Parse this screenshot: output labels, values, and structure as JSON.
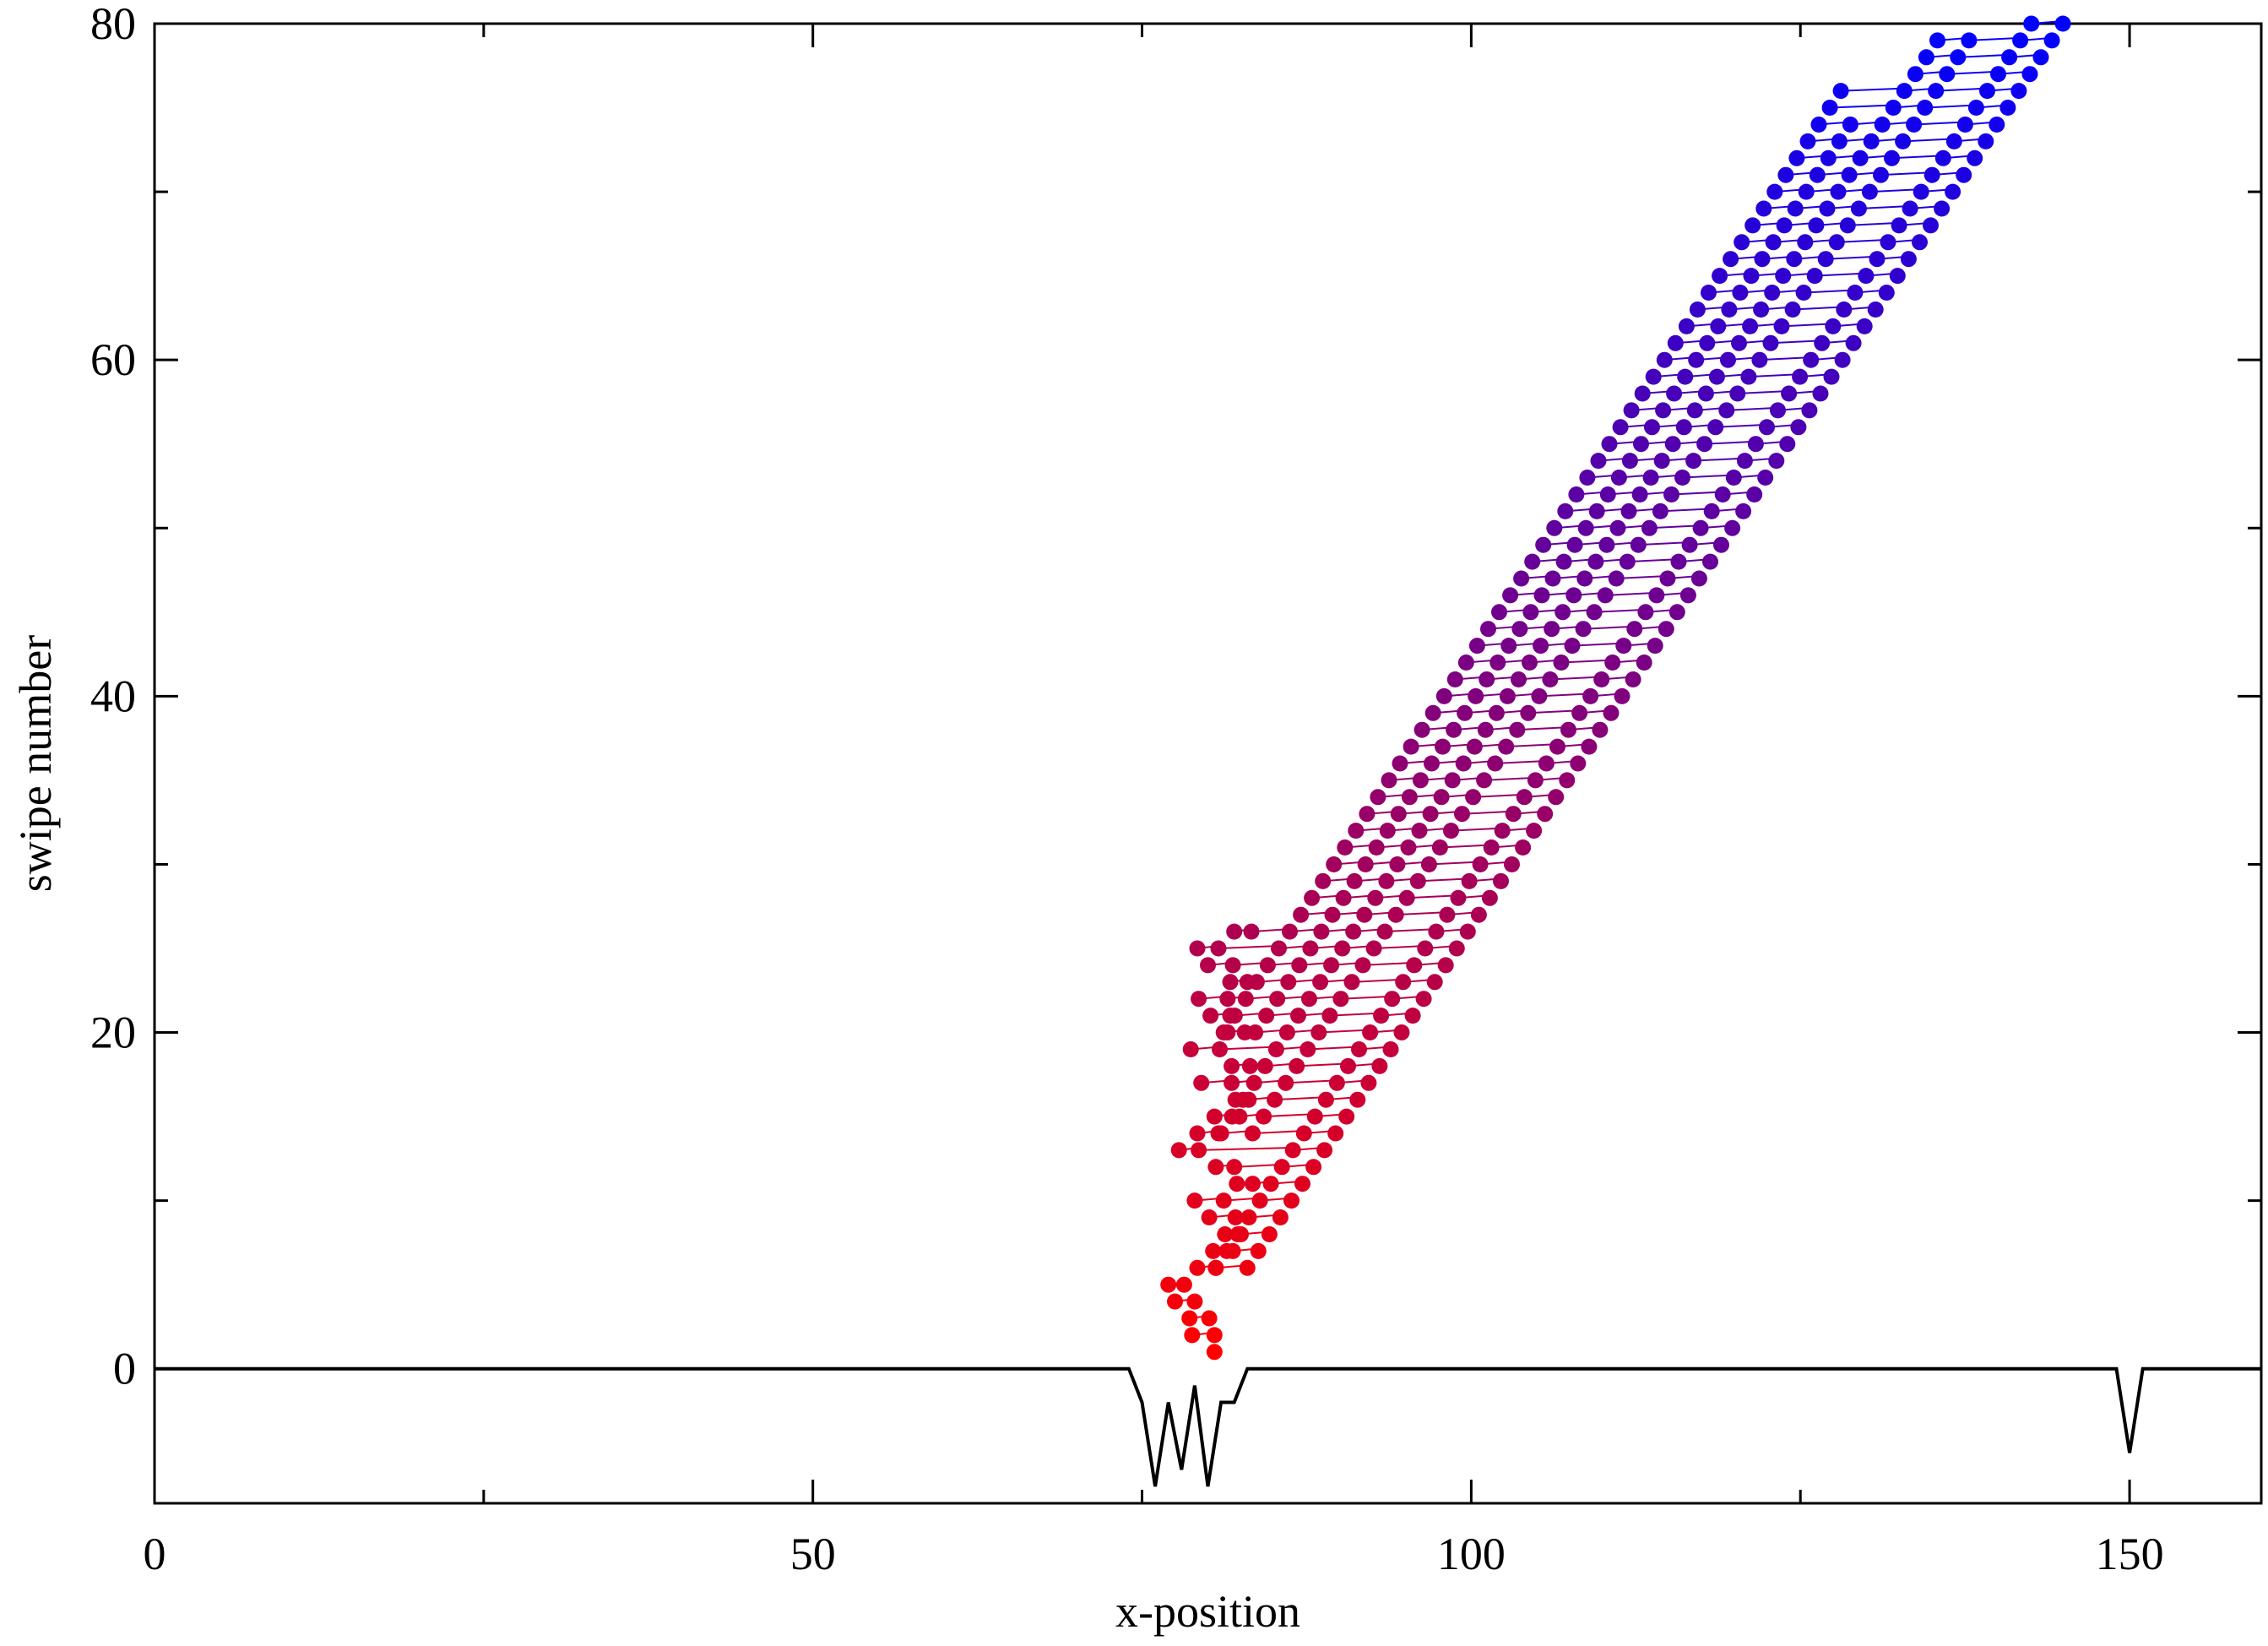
{
  "chart_data": {
    "type": "scatter",
    "title": "",
    "xlabel": "x-position",
    "ylabel": "swipe number",
    "xlim": [
      0,
      160
    ],
    "ylim": [
      -8,
      80
    ],
    "grid": false,
    "legend": "none",
    "x_ticks": [
      0,
      50,
      100,
      150
    ],
    "x_tick_labels": [
      "0",
      "50",
      "100",
      "150"
    ],
    "x_minor_ticks": [
      25,
      75,
      125
    ],
    "y_ticks": [
      0,
      20,
      40,
      60,
      80
    ],
    "y_tick_labels": [
      "0",
      "20",
      "40",
      "60",
      "80"
    ],
    "y_minor_ticks": [
      10,
      30,
      50,
      70
    ],
    "colors": {
      "start": "#ff0000",
      "end": "#0000ff",
      "profile": "#000000"
    },
    "profile": {
      "x": [
        0,
        74,
        75,
        76,
        77,
        78,
        79,
        80,
        81,
        82,
        83,
        84,
        149,
        150,
        151,
        160
      ],
      "y": [
        0,
        0,
        -2,
        -7,
        -2,
        -6,
        -1,
        -7,
        -2,
        -2,
        0,
        0,
        0,
        -5,
        0,
        0
      ]
    },
    "tracks": {
      "early": {
        "swipes": [
          1,
          2,
          3,
          4,
          5,
          6,
          7,
          8,
          9,
          10,
          11,
          12,
          13,
          14,
          15,
          16,
          17,
          18,
          19,
          20,
          21,
          22,
          23,
          24,
          25,
          26
        ],
        "a": [
          80.5,
          78.8,
          80.1,
          77.5,
          77.0,
          79.2,
          80.4,
          81.3,
          80.1,
          79.0,
          82.2,
          80.6,
          77.8,
          79.2,
          80.5,
          82.1,
          79.5,
          81.8,
          78.7,
          81.5,
          80.2,
          79.3,
          81.7,
          80.0,
          79.2,
          82.0
        ],
        "b": [
          null,
          80.5,
          78.6,
          79.0,
          78.2,
          80.6,
          81.9,
          82.5,
          82.1,
          81.2,
          83.4,
          82.0,
          79.3,
          80.8,
          82.4,
          83.1,
          81.8,
          83.2,
          80.9,
          82.8,
          81.7,
          81.5,
          83.0,
          81.9,
          80.8,
          83.3
        ]
      },
      "bands": [
        {
          "name": "",
          "x0": 80.6,
          "y0": 6,
          "y1": 80
        },
        {
          "name": "",
          "x0": 83.0,
          "y0": 6,
          "y1": 80
        },
        {
          "name": "",
          "x0": 81.0,
          "y0": 14,
          "y1": 79
        },
        {
          "name": "",
          "x0": 83.4,
          "y0": 14,
          "y1": 79
        },
        {
          "name": "",
          "x0": 81.2,
          "y0": 20,
          "y1": 76
        },
        {
          "name": "",
          "x0": 83.6,
          "y0": 20,
          "y1": 74
        }
      ],
      "slope_x_per_swipe": 0.837
    }
  }
}
